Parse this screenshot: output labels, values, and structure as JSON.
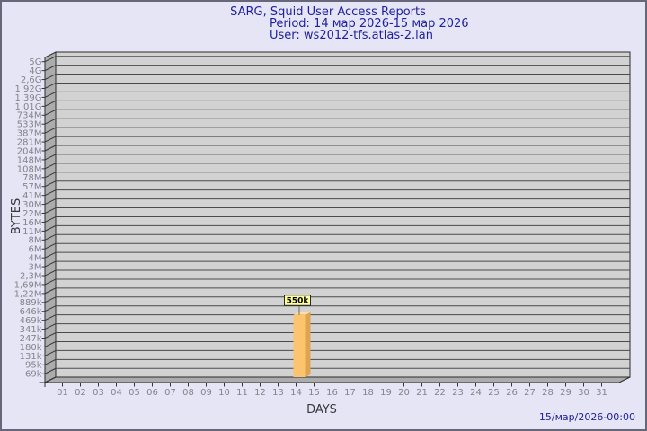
{
  "header": {
    "line1": "SARG, Squid User Access Reports",
    "line2": "Period: 14 мар 2026-15 мар 2026",
    "line3": "User: ws2012-tfs.atlas-2.lan"
  },
  "footer": {
    "timestamp": "15/мар/2026-00:00"
  },
  "chart_data": {
    "type": "bar",
    "title": "SARG, Squid User Access Reports",
    "subtitle": "Period: 14 мар 2026-15 мар 2026",
    "user_line": "User: ws2012-tfs.atlas-2.lan",
    "xlabel": "DAYS",
    "ylabel": "BYTES",
    "y_scale": "log",
    "legend": "none",
    "grid": "horizontal",
    "style": "3d-bar",
    "y_tick_labels": [
      "5G",
      "4G",
      "2,6G",
      "1,92G",
      "1,39G",
      "1,01G",
      "734M",
      "533M",
      "387M",
      "281M",
      "204M",
      "148M",
      "108M",
      "78M",
      "57M",
      "41M",
      "30M",
      "22M",
      "16M",
      "11M",
      "8M",
      "6M",
      "4M",
      "3M",
      "2,3M",
      "1,69M",
      "1,22M",
      "889k",
      "646k",
      "469k",
      "341k",
      "247k",
      "180k",
      "131k",
      "95k",
      "69k"
    ],
    "y_top_value_bytes": 5000000000,
    "y_bottom_value_bytes": 69000,
    "categories": [
      "01",
      "02",
      "03",
      "04",
      "05",
      "06",
      "07",
      "08",
      "09",
      "10",
      "11",
      "12",
      "13",
      "14",
      "15",
      "16",
      "17",
      "18",
      "19",
      "20",
      "21",
      "22",
      "23",
      "24",
      "25",
      "26",
      "27",
      "28",
      "29",
      "30",
      "31"
    ],
    "values": [
      0,
      0,
      0,
      0,
      0,
      0,
      0,
      0,
      0,
      0,
      0,
      0,
      0,
      550000,
      0,
      0,
      0,
      0,
      0,
      0,
      0,
      0,
      0,
      0,
      0,
      0,
      0,
      0,
      0,
      0,
      0
    ],
    "point_labels": [
      "",
      "",
      "",
      "",
      "",
      "",
      "",
      "",
      "",
      "",
      "",
      "",
      "",
      "550k",
      "",
      "",
      "",
      "",
      "",
      "",
      "",
      "",
      "",
      "",
      "",
      "",
      "",
      "",
      "",
      "",
      ""
    ],
    "footer_timestamp": "15/мар/2026-00:00"
  },
  "colors": {
    "background": "#E5E5F5",
    "frame_border": "#67677B",
    "plot_bg": "#D2D2D2",
    "wall": "#ACACAC",
    "floor": "#ACACAC",
    "grid_line": "#4A4A4A",
    "wall_line": "#353535",
    "outline": "#2B2B2B",
    "title_text": "#1F1F9F",
    "tick_text": "#84848A",
    "axis_title_text": "#38383C",
    "bar_front": "#FCC46E",
    "bar_side": "#DFA44F",
    "bar_top": "#FFDFA3",
    "callout_box": "#FFFF9E",
    "callout_border": "#2B2B2B",
    "callout_stem": "#6B6B4A"
  }
}
